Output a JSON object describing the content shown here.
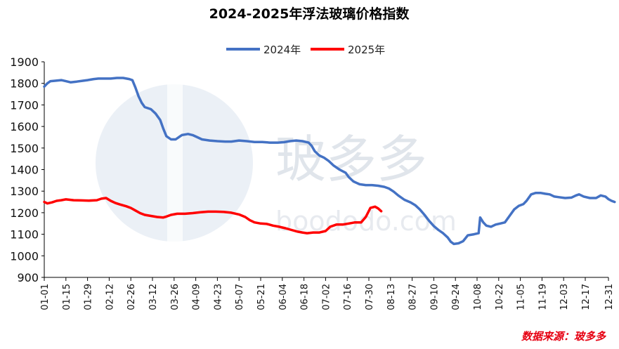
{
  "source_label": "数据来源：玻多多",
  "watermark": {
    "brand": "玻多多",
    "site": "boododo.com",
    "logo_letter": "B",
    "logo_color": "#9fb3cc"
  },
  "colors": {
    "series_2024": "#4472c4",
    "series_2025": "#ff0000",
    "axis": "#000000"
  },
  "chart_data": {
    "type": "line",
    "title": "2024-2025年浮法玻璃价格指数",
    "xlabel": "",
    "ylabel": "",
    "ylim": [
      900,
      1900
    ],
    "yticks": [
      900,
      1000,
      1100,
      1200,
      1300,
      1400,
      1500,
      1600,
      1700,
      1800,
      1900
    ],
    "x_ticks": [
      "01-01",
      "01-15",
      "01-29",
      "02-12",
      "02-26",
      "03-12",
      "03-26",
      "04-09",
      "04-23",
      "05-07",
      "05-21",
      "06-04",
      "06-18",
      "07-02",
      "07-16",
      "07-30",
      "08-13",
      "08-27",
      "09-10",
      "09-24",
      "10-08",
      "10-22",
      "11-05",
      "11-19",
      "12-03",
      "12-17",
      "12-31"
    ],
    "x_unit": "day-of-year",
    "grid": false,
    "legend": {
      "position": "top",
      "entries": [
        "2024年",
        "2025年"
      ]
    },
    "series": [
      {
        "name": "2024年",
        "color": "#4472c4",
        "points": [
          [
            1,
            1785
          ],
          [
            3,
            1800
          ],
          [
            5,
            1810
          ],
          [
            8,
            1812
          ],
          [
            12,
            1815
          ],
          [
            15,
            1810
          ],
          [
            18,
            1805
          ],
          [
            22,
            1808
          ],
          [
            26,
            1812
          ],
          [
            29,
            1815
          ],
          [
            33,
            1820
          ],
          [
            36,
            1822
          ],
          [
            40,
            1822
          ],
          [
            44,
            1822
          ],
          [
            48,
            1825
          ],
          [
            52,
            1825
          ],
          [
            56,
            1820
          ],
          [
            58,
            1815
          ],
          [
            60,
            1780
          ],
          [
            62,
            1740
          ],
          [
            64,
            1710
          ],
          [
            66,
            1690
          ],
          [
            70,
            1680
          ],
          [
            73,
            1660
          ],
          [
            76,
            1630
          ],
          [
            78,
            1590
          ],
          [
            80,
            1555
          ],
          [
            83,
            1540
          ],
          [
            86,
            1540
          ],
          [
            88,
            1550
          ],
          [
            90,
            1560
          ],
          [
            94,
            1565
          ],
          [
            97,
            1560
          ],
          [
            100,
            1550
          ],
          [
            103,
            1540
          ],
          [
            108,
            1535
          ],
          [
            113,
            1532
          ],
          [
            118,
            1530
          ],
          [
            122,
            1530
          ],
          [
            127,
            1535
          ],
          [
            132,
            1532
          ],
          [
            137,
            1528
          ],
          [
            142,
            1528
          ],
          [
            147,
            1525
          ],
          [
            152,
            1525
          ],
          [
            156,
            1527
          ],
          [
            160,
            1532
          ],
          [
            164,
            1535
          ],
          [
            168,
            1532
          ],
          [
            172,
            1525
          ],
          [
            174,
            1510
          ],
          [
            176,
            1485
          ],
          [
            179,
            1465
          ],
          [
            182,
            1455
          ],
          [
            185,
            1440
          ],
          [
            188,
            1420
          ],
          [
            192,
            1400
          ],
          [
            196,
            1385
          ],
          [
            198,
            1365
          ],
          [
            201,
            1345
          ],
          [
            205,
            1332
          ],
          [
            209,
            1328
          ],
          [
            213,
            1328
          ],
          [
            217,
            1325
          ],
          [
            221,
            1320
          ],
          [
            224,
            1312
          ],
          [
            227,
            1298
          ],
          [
            230,
            1280
          ],
          [
            234,
            1260
          ],
          [
            238,
            1248
          ],
          [
            241,
            1235
          ],
          [
            244,
            1215
          ],
          [
            247,
            1190
          ],
          [
            250,
            1162
          ],
          [
            253,
            1138
          ],
          [
            256,
            1120
          ],
          [
            259,
            1105
          ],
          [
            262,
            1085
          ],
          [
            264,
            1065
          ],
          [
            266,
            1055
          ],
          [
            269,
            1058
          ],
          [
            272,
            1068
          ],
          [
            275,
            1095
          ],
          [
            279,
            1100
          ],
          [
            282,
            1105
          ],
          [
            283,
            1178
          ],
          [
            285,
            1155
          ],
          [
            287,
            1140
          ],
          [
            290,
            1135
          ],
          [
            293,
            1145
          ],
          [
            296,
            1150
          ],
          [
            299,
            1155
          ],
          [
            302,
            1185
          ],
          [
            305,
            1215
          ],
          [
            308,
            1232
          ],
          [
            311,
            1240
          ],
          [
            313,
            1255
          ],
          [
            316,
            1285
          ],
          [
            319,
            1292
          ],
          [
            322,
            1292
          ],
          [
            325,
            1288
          ],
          [
            328,
            1285
          ],
          [
            331,
            1275
          ],
          [
            334,
            1272
          ],
          [
            338,
            1268
          ],
          [
            342,
            1270
          ],
          [
            345,
            1280
          ],
          [
            347,
            1285
          ],
          [
            350,
            1275
          ],
          [
            354,
            1268
          ],
          [
            358,
            1268
          ],
          [
            361,
            1280
          ],
          [
            364,
            1275
          ],
          [
            366,
            1263
          ],
          [
            368,
            1255
          ],
          [
            370,
            1250
          ]
        ]
      },
      {
        "name": "2025年",
        "color": "#ff0000",
        "points": [
          [
            1,
            1250
          ],
          [
            3,
            1243
          ],
          [
            6,
            1248
          ],
          [
            9,
            1255
          ],
          [
            12,
            1258
          ],
          [
            15,
            1262
          ],
          [
            20,
            1258
          ],
          [
            25,
            1257
          ],
          [
            30,
            1256
          ],
          [
            35,
            1258
          ],
          [
            38,
            1265
          ],
          [
            41,
            1268
          ],
          [
            44,
            1255
          ],
          [
            47,
            1245
          ],
          [
            50,
            1238
          ],
          [
            54,
            1230
          ],
          [
            57,
            1222
          ],
          [
            60,
            1210
          ],
          [
            63,
            1198
          ],
          [
            66,
            1190
          ],
          [
            70,
            1185
          ],
          [
            74,
            1180
          ],
          [
            78,
            1178
          ],
          [
            80,
            1182
          ],
          [
            83,
            1190
          ],
          [
            87,
            1195
          ],
          [
            92,
            1195
          ],
          [
            97,
            1198
          ],
          [
            102,
            1202
          ],
          [
            107,
            1205
          ],
          [
            112,
            1205
          ],
          [
            117,
            1204
          ],
          [
            122,
            1200
          ],
          [
            127,
            1192
          ],
          [
            131,
            1180
          ],
          [
            134,
            1165
          ],
          [
            137,
            1155
          ],
          [
            141,
            1150
          ],
          [
            145,
            1148
          ],
          [
            149,
            1140
          ],
          [
            153,
            1135
          ],
          [
            157,
            1128
          ],
          [
            161,
            1120
          ],
          [
            165,
            1112
          ],
          [
            168,
            1108
          ],
          [
            171,
            1105
          ],
          [
            175,
            1108
          ],
          [
            179,
            1108
          ],
          [
            183,
            1115
          ],
          [
            186,
            1135
          ],
          [
            190,
            1145
          ],
          [
            194,
            1145
          ],
          [
            198,
            1150
          ],
          [
            202,
            1155
          ],
          [
            206,
            1155
          ],
          [
            209,
            1180
          ],
          [
            212,
            1222
          ],
          [
            215,
            1228
          ],
          [
            217,
            1220
          ],
          [
            219,
            1207
          ]
        ]
      }
    ]
  }
}
